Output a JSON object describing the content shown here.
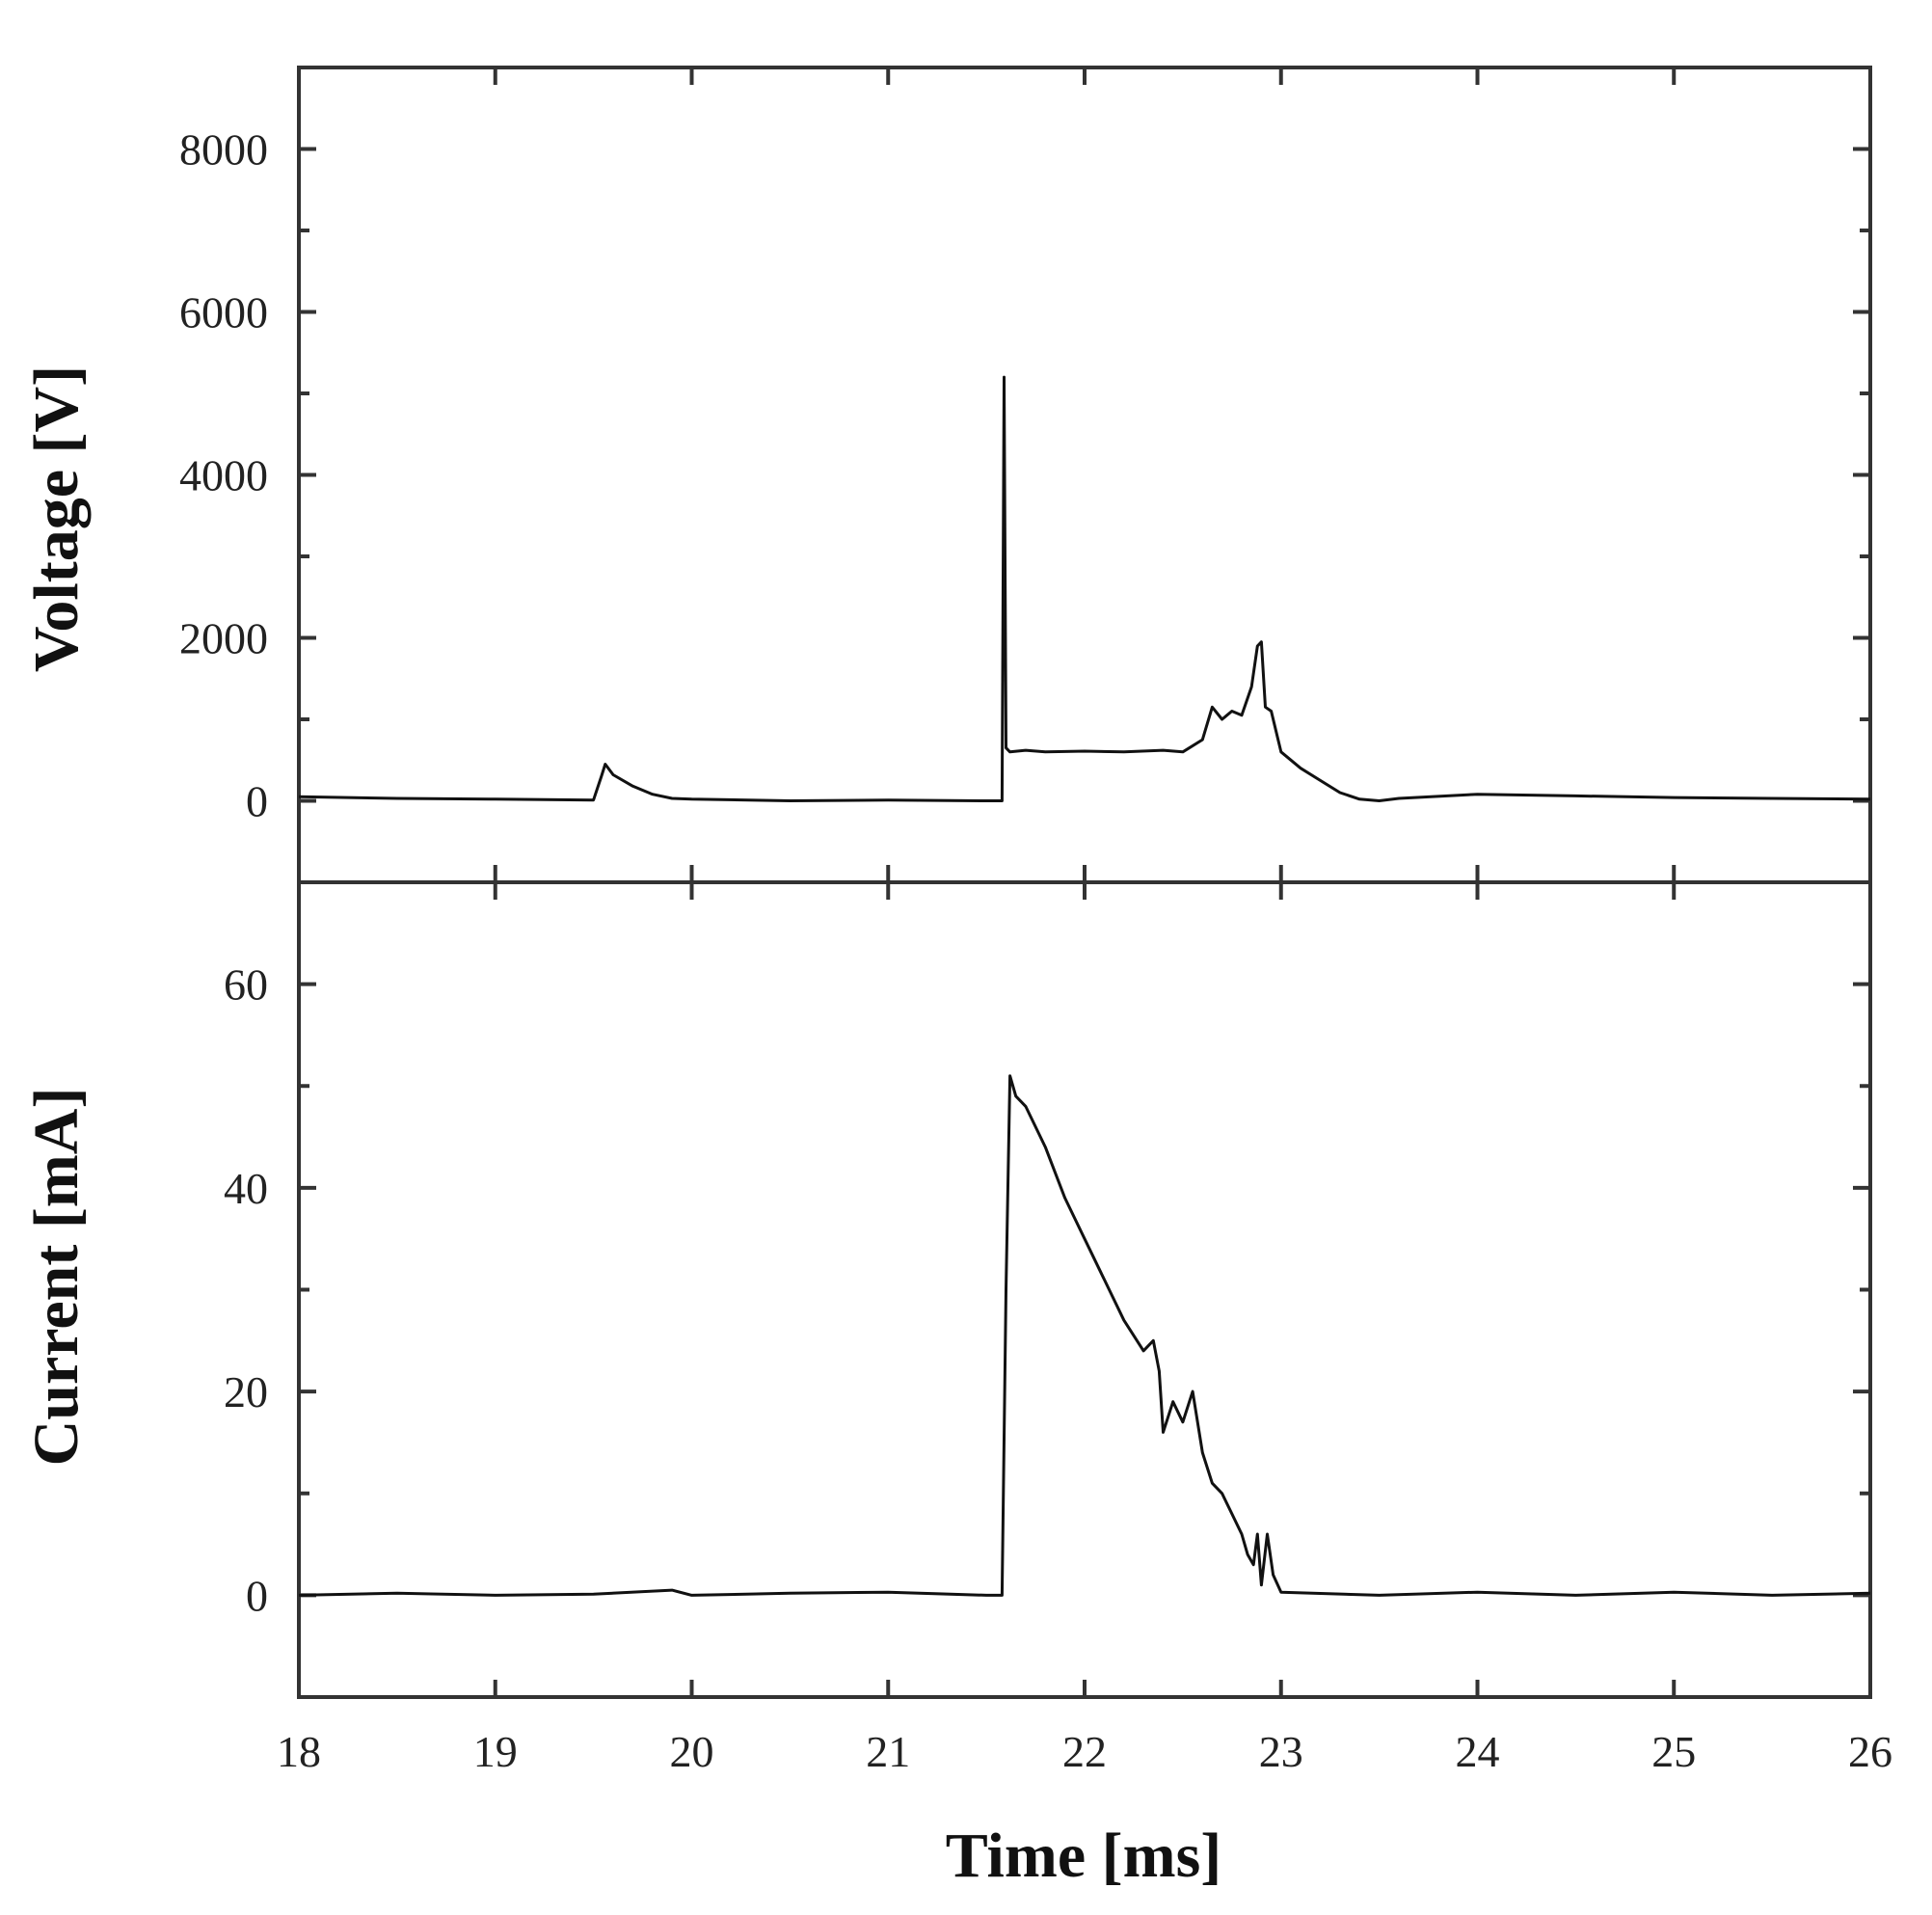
{
  "chart_data": [
    {
      "type": "line",
      "title": "",
      "xlabel": "",
      "ylabel": "Voltage [V]",
      "xlim": [
        18,
        26
      ],
      "ylim": [
        -1000,
        9000
      ],
      "x_ticks": [
        18,
        19,
        20,
        21,
        22,
        23,
        24,
        25,
        26
      ],
      "y_ticks": [
        0,
        2000,
        4000,
        6000,
        8000
      ],
      "y_tick_labels": [
        "0",
        "2000",
        "4000",
        "6000",
        "8000"
      ],
      "y_minor_ticks": [
        -1000,
        1000,
        3000,
        5000,
        7000,
        9000
      ],
      "grid": false,
      "series": [
        {
          "x": [
            18.0,
            18.5,
            19.0,
            19.5,
            19.54,
            19.56,
            19.6,
            19.7,
            19.8,
            19.9,
            20.0,
            20.5,
            21.0,
            21.5,
            21.58,
            21.59,
            21.6,
            21.62,
            21.7,
            21.8,
            22.0,
            22.2,
            22.4,
            22.5,
            22.6,
            22.65,
            22.7,
            22.75,
            22.8,
            22.85,
            22.88,
            22.9,
            22.92,
            22.95,
            22.98,
            23.0,
            23.1,
            23.2,
            23.3,
            23.4,
            23.5,
            23.6,
            24.0,
            24.5,
            25.0,
            25.5,
            26.0
          ],
          "y": [
            50,
            30,
            20,
            10,
            300,
            450,
            320,
            180,
            80,
            30,
            20,
            0,
            10,
            0,
            0,
            5200,
            650,
            600,
            620,
            600,
            610,
            600,
            620,
            600,
            750,
            1150,
            1000,
            1100,
            1050,
            1400,
            1900,
            1950,
            1150,
            1100,
            800,
            600,
            400,
            250,
            100,
            20,
            0,
            30,
            80,
            60,
            40,
            30,
            20
          ]
        }
      ]
    },
    {
      "type": "line",
      "title": "",
      "xlabel": "Time [ms]",
      "ylabel": "Current [mA]",
      "xlim": [
        18,
        26
      ],
      "ylim": [
        -10,
        70
      ],
      "x_ticks": [
        18,
        19,
        20,
        21,
        22,
        23,
        24,
        25,
        26
      ],
      "x_tick_labels": [
        "18",
        "19",
        "20",
        "21",
        "22",
        "23",
        "24",
        "25",
        "26"
      ],
      "y_ticks": [
        0,
        20,
        40,
        60
      ],
      "y_tick_labels": [
        "0",
        "20",
        "40",
        "60"
      ],
      "y_minor_ticks": [
        -10,
        10,
        30,
        50,
        70
      ],
      "grid": false,
      "series": [
        {
          "x": [
            18.0,
            18.5,
            19.0,
            19.5,
            19.9,
            20.0,
            20.5,
            21.0,
            21.5,
            21.58,
            21.6,
            21.62,
            21.65,
            21.7,
            21.8,
            21.9,
            22.0,
            22.1,
            22.2,
            22.3,
            22.35,
            22.38,
            22.4,
            22.45,
            22.5,
            22.55,
            22.6,
            22.65,
            22.7,
            22.75,
            22.8,
            22.83,
            22.86,
            22.88,
            22.9,
            22.93,
            22.96,
            23.0,
            23.5,
            24.0,
            24.5,
            25.0,
            25.5,
            26.0
          ],
          "y": [
            0,
            0.2,
            0,
            0.1,
            0.5,
            0,
            0.2,
            0.3,
            0,
            0,
            30,
            51,
            49,
            48,
            44,
            39,
            35,
            31,
            27,
            24,
            25,
            22,
            16,
            19,
            17,
            20,
            14,
            11,
            10,
            8,
            6,
            4,
            3,
            6,
            1,
            6,
            2,
            0.3,
            0,
            0.3,
            0,
            0.3,
            0,
            0.2
          ]
        }
      ]
    }
  ]
}
